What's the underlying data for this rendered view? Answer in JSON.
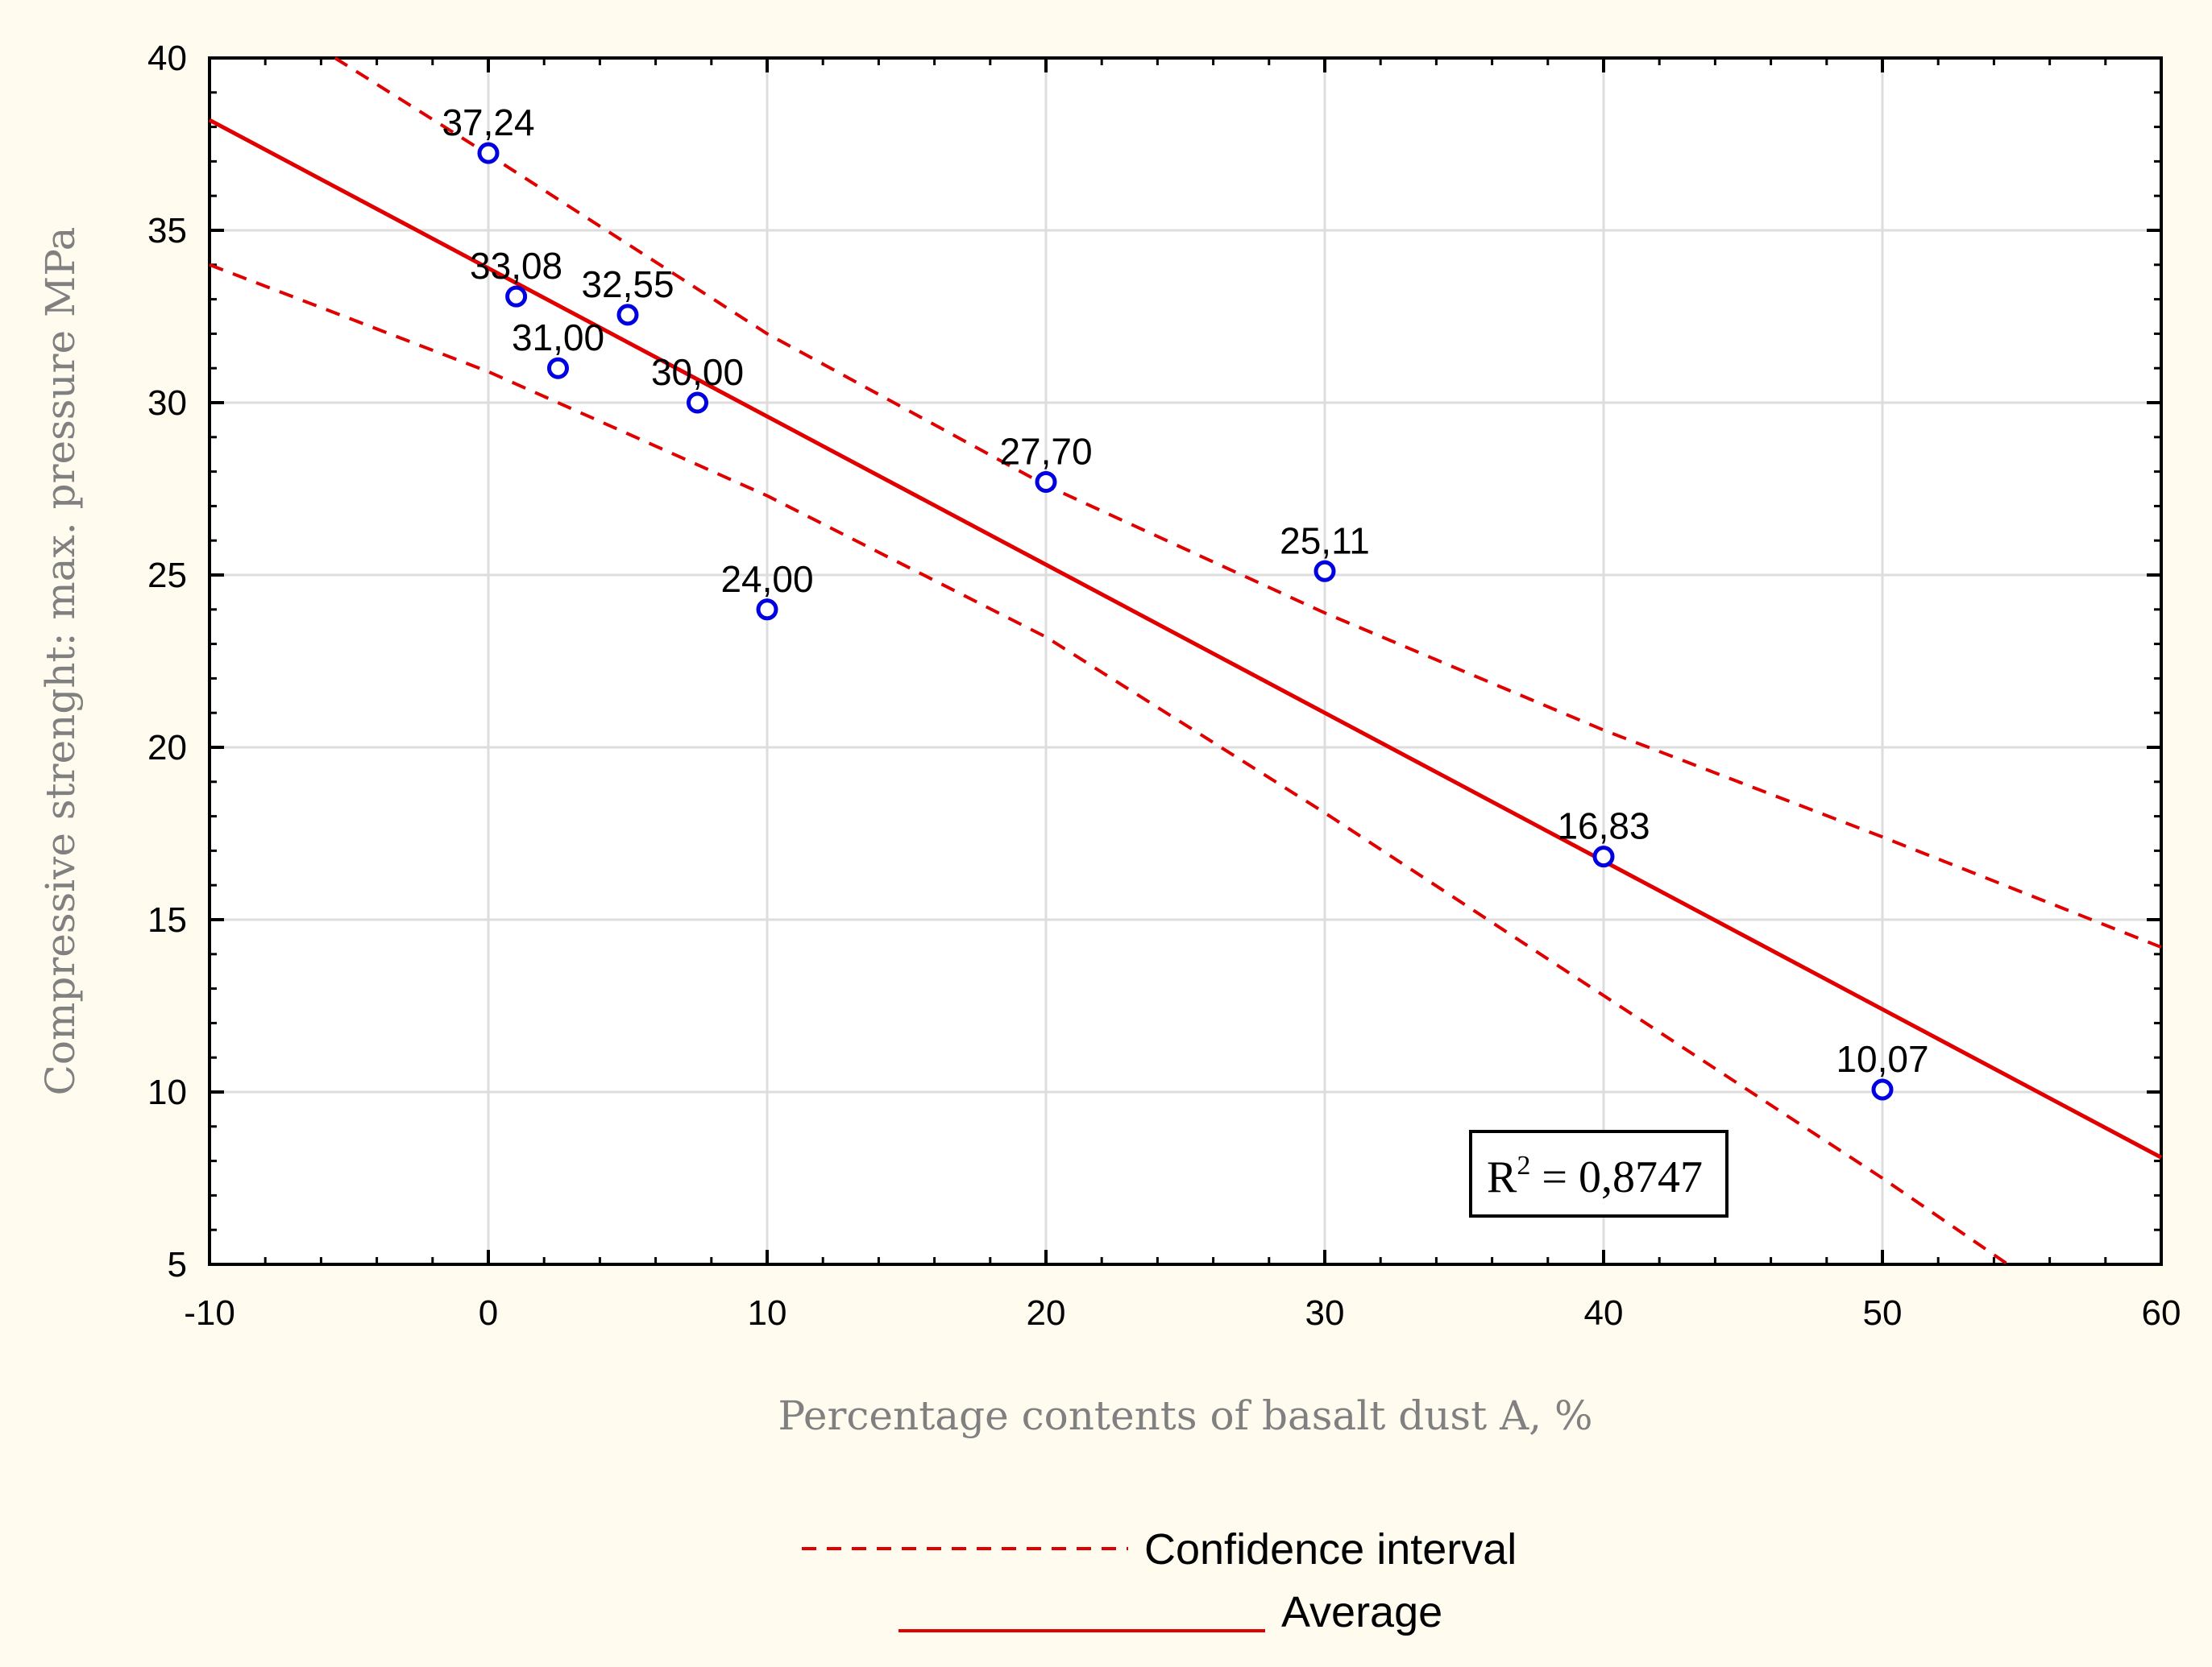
{
  "chart_data": {
    "type": "scatter",
    "xlabel": "Percentage contents of basalt dust A, %",
    "ylabel": "Compressive strenght: max. pressure MPa",
    "xlim": [
      -10,
      60
    ],
    "ylim": [
      5,
      40
    ],
    "xticks": [
      -10,
      0,
      10,
      20,
      30,
      40,
      50,
      60
    ],
    "yticks": [
      5,
      10,
      15,
      20,
      25,
      30,
      35,
      40
    ],
    "grid": true,
    "points": [
      {
        "x": 0,
        "y": 37.24,
        "label": "37,24"
      },
      {
        "x": 1,
        "y": 33.08,
        "label": "33,08"
      },
      {
        "x": 2.5,
        "y": 31.0,
        "label": "31,00"
      },
      {
        "x": 5,
        "y": 32.55,
        "label": "32,55"
      },
      {
        "x": 7.5,
        "y": 30.0,
        "label": "30,00"
      },
      {
        "x": 10,
        "y": 24.0,
        "label": "24,00"
      },
      {
        "x": 20,
        "y": 27.7,
        "label": "27,70"
      },
      {
        "x": 30,
        "y": 25.11,
        "label": "25,11"
      },
      {
        "x": 40,
        "y": 16.83,
        "label": "16,83"
      },
      {
        "x": 50,
        "y": 10.07,
        "label": "10,07"
      }
    ],
    "fit_line": {
      "name": "Average",
      "x": [
        -10,
        60
      ],
      "y": [
        38.2,
        8.1
      ]
    },
    "confidence_upper": {
      "name": "Confidence interval",
      "x": [
        -5.5,
        0,
        10,
        20,
        30,
        40,
        50,
        60
      ],
      "y": [
        40,
        37.2,
        32.0,
        27.6,
        23.9,
        20.5,
        17.4,
        14.2
      ]
    },
    "confidence_lower": {
      "name": "Confidence interval",
      "x": [
        -10,
        0,
        10,
        20,
        30,
        40,
        50,
        54.5
      ],
      "y": [
        34.0,
        30.9,
        27.3,
        23.2,
        18.1,
        12.8,
        7.5,
        5
      ]
    },
    "r2_label": "R",
    "r2_sup": "2",
    "r2_value": " = 0,8747",
    "legend": [
      {
        "label": "Confidence interval",
        "style": "dashed"
      },
      {
        "label": "Average",
        "style": "solid"
      }
    ],
    "colors": {
      "background": "#fffbef",
      "plot_bg": "#ffffff",
      "grid": "#dddddd",
      "line": "#e00000",
      "marker": "#0000e0",
      "axis_title": "#808080"
    }
  }
}
